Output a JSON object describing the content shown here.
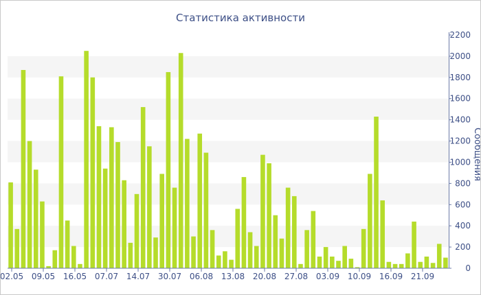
{
  "chart_data": {
    "type": "bar",
    "title": "Статистика активности",
    "ylabel": "Сообщения",
    "ylim": [
      0,
      2200
    ],
    "y_ticks": [
      0,
      200,
      400,
      600,
      800,
      1000,
      1200,
      1400,
      1600,
      1800,
      2000,
      2200
    ],
    "x_tick_labels": [
      "02.05",
      "09.05",
      "16.05",
      "07.07",
      "14.07",
      "30.07",
      "06.08",
      "13.08",
      "20.08",
      "27.08",
      "03.09",
      "10.09",
      "16.09",
      "21.09"
    ],
    "y_axis_position": "right",
    "grid": "alternating horizontal bands",
    "bar_color": "#b5dc2b",
    "values": [
      810,
      370,
      1870,
      1200,
      930,
      630,
      20,
      170,
      1810,
      450,
      210,
      40,
      2050,
      1800,
      1340,
      940,
      1330,
      1190,
      830,
      240,
      700,
      1520,
      1150,
      290,
      890,
      1850,
      760,
      2030,
      1220,
      300,
      1270,
      1090,
      360,
      120,
      160,
      80,
      560,
      860,
      340,
      210,
      1070,
      990,
      500,
      280,
      760,
      680,
      40,
      360,
      540,
      110,
      200,
      110,
      70,
      210,
      90,
      10,
      370,
      890,
      1430,
      640,
      60,
      40,
      40,
      140,
      440,
      60,
      110,
      50,
      230,
      100
    ]
  }
}
